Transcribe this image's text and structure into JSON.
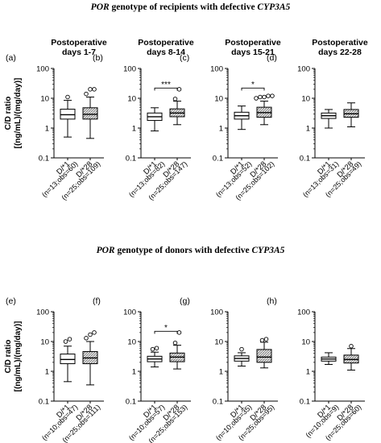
{
  "sections": [
    {
      "title_gene": "POR",
      "title_text": " genotype of recipients with defective ",
      "title_gene2": "CYP3A5"
    },
    {
      "title_gene": "POR",
      "title_text": " genotype of donors with defective ",
      "title_gene2": "CYP3A5"
    }
  ],
  "ylabel_line1": "C/D ratio",
  "ylabel_line2": "[(ng/mL)/(mg/day)]",
  "chart_data": [
    {
      "type": "box",
      "panel": "(a)",
      "title_lines": [
        "Postoperative",
        "days 1-7"
      ],
      "yscale": "log",
      "ylim": [
        0.1,
        100
      ],
      "yticks": [
        "0.1",
        "1",
        "10",
        "100"
      ],
      "categories": [
        "D/*1",
        "D/*28"
      ],
      "n_labels": [
        "(n=13;obs=60)",
        "(n=25;obs=109)"
      ],
      "boxes": [
        {
          "min": 0.5,
          "q1": 2.0,
          "median": 2.8,
          "q3": 4.3,
          "max": 8.5,
          "outliers": [
            11
          ]
        },
        {
          "min": 0.45,
          "q1": 2.0,
          "median": 2.9,
          "q3": 4.8,
          "max": 11,
          "outliers": [
            14,
            20,
            20
          ]
        }
      ],
      "significance": null
    },
    {
      "type": "box",
      "panel": "(b)",
      "title_lines": [
        "Postoperative",
        "days 8-14"
      ],
      "yscale": "log",
      "ylim": [
        0.1,
        100
      ],
      "yticks": [
        "0.1",
        "1",
        "10",
        "100"
      ],
      "categories": [
        "D/*1",
        "D/*28"
      ],
      "n_labels": [
        "(n=13;obs=82)",
        "(n=25;obs=147)"
      ],
      "boxes": [
        {
          "min": 0.8,
          "q1": 1.8,
          "median": 2.4,
          "q3": 3.2,
          "max": 4.8,
          "outliers": []
        },
        {
          "min": 1.3,
          "q1": 2.4,
          "median": 3.2,
          "q3": 4.4,
          "max": 8.0,
          "outliers": [
            9.5,
            20
          ]
        }
      ],
      "significance": "***"
    },
    {
      "type": "box",
      "panel": "(c)",
      "title_lines": [
        "Postoperative",
        "days 15-21"
      ],
      "yscale": "log",
      "ylim": [
        0.1,
        100
      ],
      "yticks": [
        "0.1",
        "1",
        "10",
        "100"
      ],
      "categories": [
        "D/*1",
        "D/*28"
      ],
      "n_labels": [
        "(n=13;obs=52)",
        "(n=25;obs=102)"
      ],
      "boxes": [
        {
          "min": 0.9,
          "q1": 2.0,
          "median": 2.6,
          "q3": 3.4,
          "max": 5.5,
          "outliers": []
        },
        {
          "min": 1.3,
          "q1": 2.3,
          "median": 3.3,
          "q3": 5.0,
          "max": 8.0,
          "outliers": [
            10,
            11,
            11,
            12,
            12
          ]
        }
      ],
      "significance": "*"
    },
    {
      "type": "box",
      "panel": "(d)",
      "title_lines": [
        "Postoperative",
        "days 22-28"
      ],
      "yscale": "log",
      "ylim": [
        0.1,
        100
      ],
      "yticks": [
        "0.1",
        "1",
        "10",
        "100"
      ],
      "categories": [
        "D/*1",
        "D/*28"
      ],
      "n_labels": [
        "(n=13;obs=31)",
        "(n=25;obs=49)"
      ],
      "boxes": [
        {
          "min": 1.0,
          "q1": 2.1,
          "median": 2.6,
          "q3": 3.2,
          "max": 4.2,
          "outliers": []
        },
        {
          "min": 1.1,
          "q1": 2.3,
          "median": 3.0,
          "q3": 4.2,
          "max": 7.0,
          "outliers": []
        }
      ],
      "significance": null
    },
    {
      "type": "box",
      "panel": "(e)",
      "title_lines": [],
      "yscale": "log",
      "ylim": [
        0.1,
        100
      ],
      "yticks": [
        "0.1",
        "1",
        "10",
        "100"
      ],
      "categories": [
        "D/*1",
        "D/*28"
      ],
      "n_labels": [
        "(n=10;obs=47)",
        "(n=25;obs=111)"
      ],
      "boxes": [
        {
          "min": 0.45,
          "q1": 1.8,
          "median": 2.5,
          "q3": 3.8,
          "max": 7.0,
          "outliers": [
            10,
            12
          ]
        },
        {
          "min": 0.35,
          "q1": 1.8,
          "median": 2.8,
          "q3": 4.6,
          "max": 10,
          "outliers": [
            13,
            17,
            20
          ]
        }
      ],
      "significance": null
    },
    {
      "type": "box",
      "panel": "(f)",
      "title_lines": [],
      "yscale": "log",
      "ylim": [
        0.1,
        100
      ],
      "yticks": [
        "0.1",
        "1",
        "10",
        "100"
      ],
      "categories": [
        "D/*1",
        "D/*28"
      ],
      "n_labels": [
        "(n=10;obs=57)",
        "(n=25;obs=153)"
      ],
      "boxes": [
        {
          "min": 1.4,
          "q1": 2.1,
          "median": 2.6,
          "q3": 3.2,
          "max": 4.4,
          "outliers": [
            5.5,
            6.0
          ]
        },
        {
          "min": 1.2,
          "q1": 2.1,
          "median": 3.0,
          "q3": 4.1,
          "max": 7.5,
          "outliers": [
            9.0,
            20
          ]
        }
      ],
      "significance": "*"
    },
    {
      "type": "box",
      "panel": "(g)",
      "title_lines": [],
      "yscale": "log",
      "ylim": [
        0.1,
        100
      ],
      "yticks": [
        "0.1",
        "1",
        "10",
        "100"
      ],
      "categories": [
        "D/*1",
        "D/*28"
      ],
      "n_labels": [
        "(n=10;obs=35)",
        "(n=25;obs=95)"
      ],
      "boxes": [
        {
          "min": 1.5,
          "q1": 2.2,
          "median": 2.7,
          "q3": 3.3,
          "max": 4.2,
          "outliers": [
            5.5
          ]
        },
        {
          "min": 1.3,
          "q1": 2.0,
          "median": 3.0,
          "q3": 5.4,
          "max": 9.5,
          "outliers": [
            11,
            12
          ]
        }
      ],
      "significance": null
    },
    {
      "type": "box",
      "panel": "(h)",
      "title_lines": [],
      "yscale": "log",
      "ylim": [
        0.1,
        100
      ],
      "yticks": [
        "0.1",
        "1",
        "10",
        "100"
      ],
      "categories": [
        "D/*1",
        "D/*28"
      ],
      "n_labels": [
        "(n=10;obs=9)",
        "(n=25;obs=60)"
      ],
      "boxes": [
        {
          "min": 1.7,
          "q1": 2.2,
          "median": 2.6,
          "q3": 3.0,
          "max": 4.2,
          "outliers": []
        },
        {
          "min": 1.1,
          "q1": 1.9,
          "median": 2.5,
          "q3": 3.5,
          "max": 5.8,
          "outliers": [
            7.0
          ]
        }
      ],
      "significance": null
    }
  ]
}
